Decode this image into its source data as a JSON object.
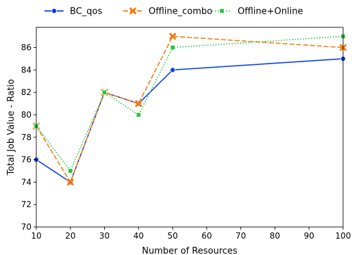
{
  "chart_data": {
    "type": "line",
    "title": "",
    "xlabel": "Number of Resources",
    "ylabel": "Total Job Value - Ratio",
    "x": [
      10,
      20,
      30,
      40,
      50,
      100
    ],
    "xlim": [
      10,
      100
    ],
    "ylim": [
      70,
      87.8
    ],
    "xticks": [
      10,
      20,
      30,
      40,
      50,
      60,
      70,
      80,
      90,
      100
    ],
    "yticks": [
      70,
      72,
      74,
      76,
      78,
      80,
      82,
      84,
      86
    ],
    "grid": false,
    "legend_position": "top-center",
    "series": [
      {
        "name": "BC_qos",
        "values": [
          76,
          74,
          82,
          81,
          84,
          85
        ],
        "color": "#0b3fe8",
        "linestyle": "solid",
        "marker": "circle"
      },
      {
        "name": "Offline_combo",
        "values": [
          79,
          74,
          82,
          81,
          87,
          86
        ],
        "color": "#f57d0f",
        "linestyle": "dashed",
        "marker": "x"
      },
      {
        "name": "Offline+Online",
        "values": [
          79,
          75,
          82,
          80,
          86,
          87
        ],
        "color": "#21c53a",
        "linestyle": "dotted",
        "marker": "square"
      }
    ]
  }
}
